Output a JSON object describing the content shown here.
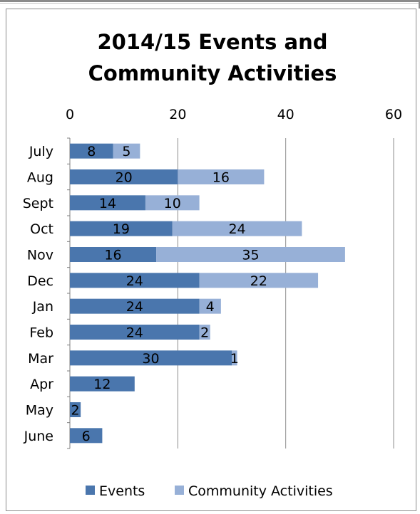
{
  "chart_data": {
    "type": "bar",
    "orientation": "horizontal",
    "stacked": true,
    "title": "2014/15 Events and Community Activities",
    "title_lines": [
      "2014/15 Events and",
      "Community Activities"
    ],
    "xlim": [
      0,
      60
    ],
    "xticks": [
      0,
      20,
      40,
      60
    ],
    "grid": true,
    "legend_position": "bottom",
    "categories": [
      "July",
      "Aug",
      "Sept",
      "Oct",
      "Nov",
      "Dec",
      "Jan",
      "Feb",
      "Mar",
      "Apr",
      "May",
      "June"
    ],
    "series": [
      {
        "name": "Events",
        "color": "#4a76ad",
        "values": [
          8,
          20,
          14,
          19,
          16,
          24,
          24,
          24,
          30,
          12,
          2,
          6
        ]
      },
      {
        "name": "Community Activities",
        "color": "#97b0d7",
        "values": [
          5,
          16,
          10,
          24,
          35,
          22,
          4,
          2,
          1,
          null,
          null,
          null
        ]
      }
    ]
  }
}
